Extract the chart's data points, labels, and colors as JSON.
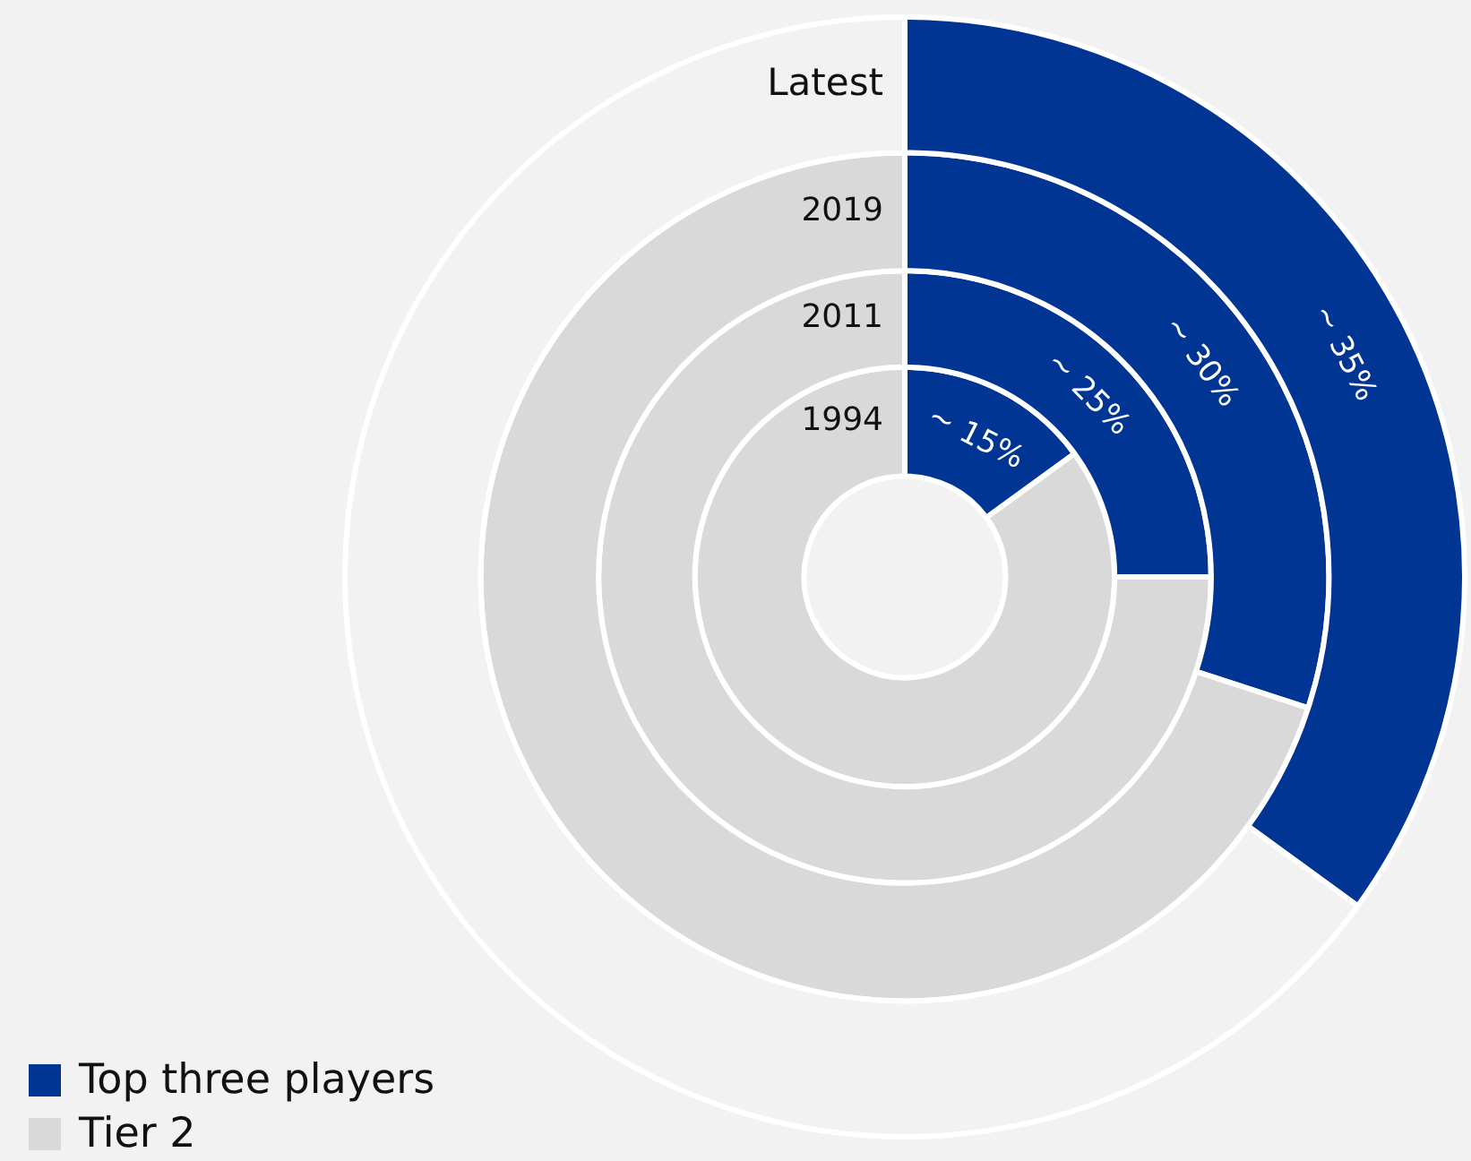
{
  "chart_data": {
    "type": "donut",
    "categories": [
      "Top three players",
      "Tier 2"
    ],
    "series": [
      {
        "name": "1994",
        "values": [
          15,
          85
        ],
        "colors": [
          "#003594",
          "#d9d9d9"
        ],
        "value_labels": [
          "~ 15%",
          null
        ]
      },
      {
        "name": "2011",
        "values": [
          25,
          75
        ],
        "colors": [
          "#003594",
          "#d9d9d9"
        ],
        "value_labels": [
          "~ 25%",
          null
        ]
      },
      {
        "name": "2019",
        "values": [
          30,
          70
        ],
        "colors": [
          "#003594",
          "#d9d9d9"
        ],
        "value_labels": [
          "~ 30%",
          null
        ]
      },
      {
        "name": "Latest",
        "values": [
          35,
          65
        ],
        "colors": [
          "#003594",
          "#f2f2f2"
        ],
        "value_labels": [
          "~ 35%",
          null
        ]
      }
    ],
    "legend": "bottom left"
  }
}
